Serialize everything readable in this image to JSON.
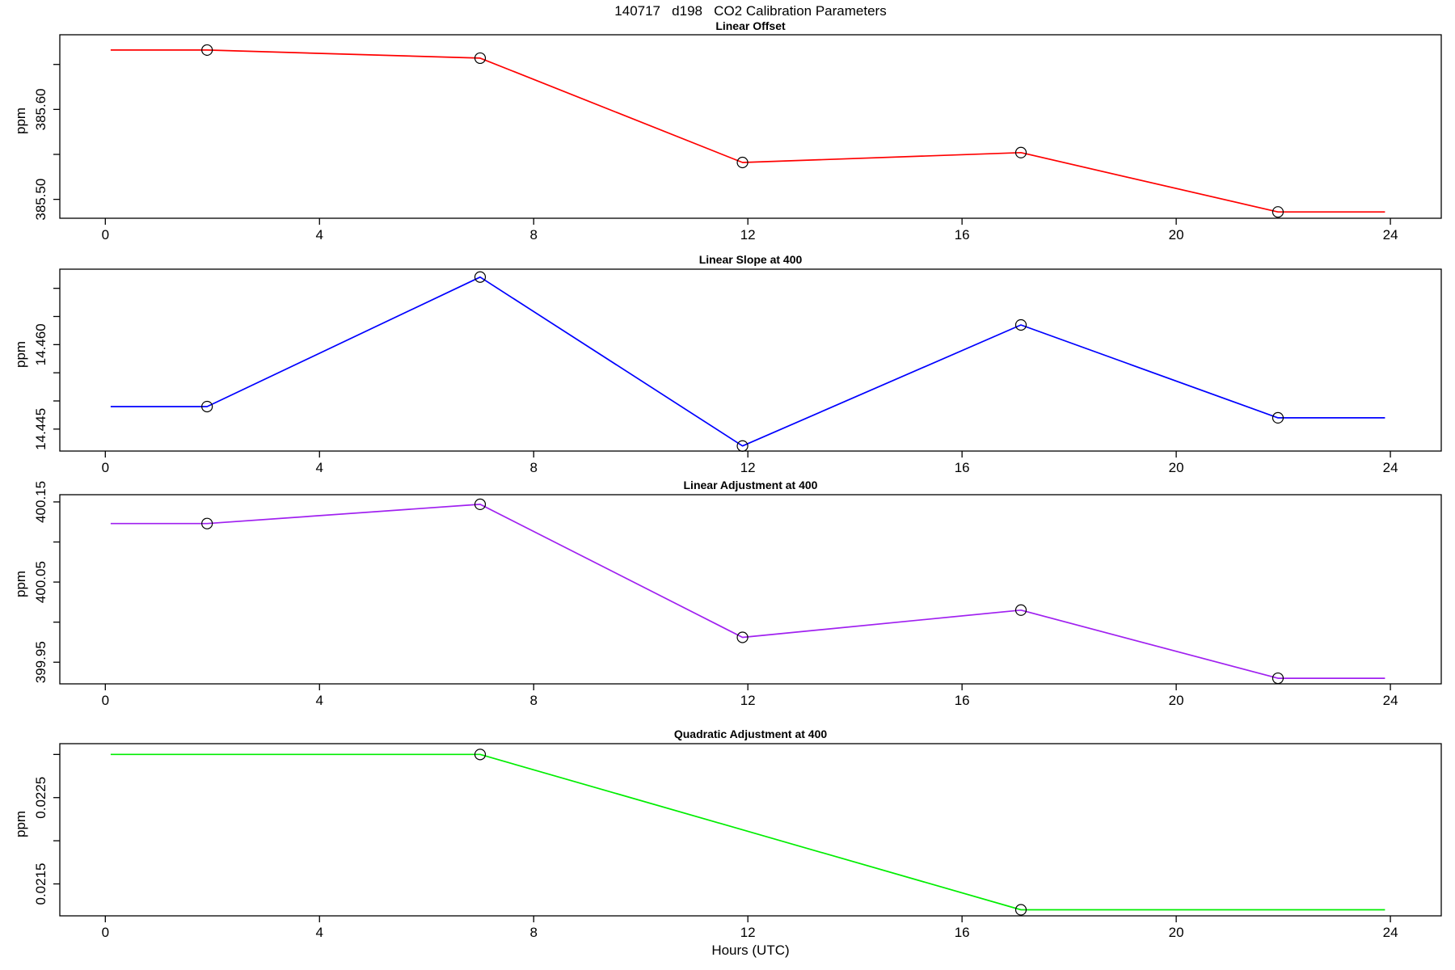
{
  "figure": {
    "title": "140717   d198   CO2 Calibration Parameters",
    "xlabel": "Hours (UTC)",
    "ylabel": "ppm",
    "background": "#ffffff",
    "axis_color": "#000000"
  },
  "chart_data": [
    {
      "type": "line",
      "title": "Linear Offset",
      "color": "#FF0000",
      "ylabel": "ppm",
      "x": [
        0.1,
        1.9,
        7.0,
        11.9,
        17.1,
        21.9,
        23.9
      ],
      "y": [
        385.666,
        385.666,
        385.657,
        385.541,
        385.552,
        385.486,
        385.486
      ],
      "marker_indices": [
        1,
        2,
        3,
        4,
        5
      ],
      "marker": "open-circle",
      "xlim": [
        -0.85,
        24.95
      ],
      "ylim": [
        385.479,
        385.683
      ],
      "xticks": [
        0,
        4,
        8,
        12,
        16,
        20,
        24
      ],
      "yticks": [
        {
          "value": 385.5,
          "label": "385.50"
        },
        {
          "value": 385.55,
          "label": ""
        },
        {
          "value": 385.6,
          "label": "385.60"
        },
        {
          "value": 385.65,
          "label": ""
        }
      ],
      "grid": false
    },
    {
      "type": "line",
      "title": "Linear Slope at 400",
      "color": "#0000FF",
      "ylabel": "ppm",
      "x": [
        0.1,
        1.9,
        7.0,
        11.9,
        17.1,
        21.9,
        23.9
      ],
      "y": [
        14.449,
        14.449,
        14.472,
        14.442,
        14.4635,
        14.447,
        14.447
      ],
      "marker_indices": [
        1,
        2,
        3,
        4,
        5
      ],
      "marker": "open-circle",
      "xlim": [
        -0.85,
        24.95
      ],
      "ylim": [
        14.4411,
        14.4734
      ],
      "xticks": [
        0,
        4,
        8,
        12,
        16,
        20,
        24
      ],
      "yticks": [
        {
          "value": 14.445,
          "label": "14.445"
        },
        {
          "value": 14.45,
          "label": ""
        },
        {
          "value": 14.455,
          "label": ""
        },
        {
          "value": 14.46,
          "label": "14.460"
        },
        {
          "value": 14.465,
          "label": ""
        },
        {
          "value": 14.47,
          "label": ""
        }
      ],
      "grid": false
    },
    {
      "type": "line",
      "title": "Linear Adjustment at 400",
      "color": "#A020F0",
      "ylabel": "ppm",
      "x": [
        0.1,
        1.9,
        7.0,
        11.9,
        17.1,
        21.9,
        23.9
      ],
      "y": [
        400.123,
        400.123,
        400.147,
        399.981,
        400.015,
        399.93,
        399.93
      ],
      "marker_indices": [
        1,
        2,
        3,
        4,
        5
      ],
      "marker": "open-circle",
      "xlim": [
        -0.85,
        24.95
      ],
      "ylim": [
        399.923,
        400.159
      ],
      "xticks": [
        0,
        4,
        8,
        12,
        16,
        20,
        24
      ],
      "yticks": [
        {
          "value": 399.95,
          "label": "399.95"
        },
        {
          "value": 400.0,
          "label": ""
        },
        {
          "value": 400.05,
          "label": "400.05"
        },
        {
          "value": 400.1,
          "label": ""
        },
        {
          "value": 400.15,
          "label": "400.15"
        }
      ],
      "grid": false
    },
    {
      "type": "line",
      "title": "Quadratic Adjustment at 400",
      "color": "#00EE00",
      "ylabel": "ppm",
      "x": [
        0.1,
        7.0,
        17.1,
        23.9
      ],
      "y": [
        0.023,
        0.023,
        0.0212,
        0.0212
      ],
      "marker_indices": [
        1,
        2
      ],
      "marker": "open-circle",
      "xlim": [
        -0.85,
        24.95
      ],
      "ylim": [
        0.02113,
        0.023125
      ],
      "xticks": [
        0,
        4,
        8,
        12,
        16,
        20,
        24
      ],
      "yticks": [
        {
          "value": 0.0215,
          "label": "0.0215"
        },
        {
          "value": 0.022,
          "label": ""
        },
        {
          "value": 0.0225,
          "label": "0.0225"
        },
        {
          "value": 0.023,
          "label": ""
        }
      ],
      "grid": false
    }
  ]
}
